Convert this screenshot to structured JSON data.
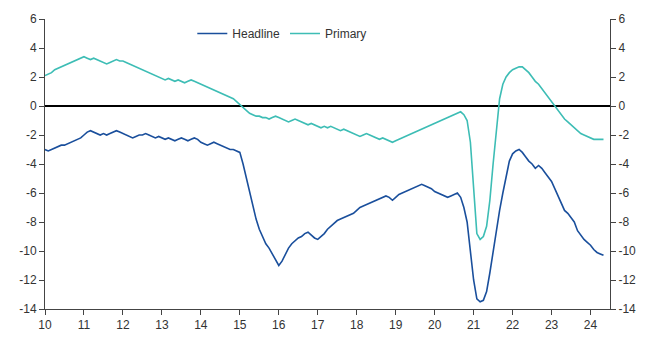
{
  "chart_data": {
    "type": "line",
    "x": [
      10.0,
      10.083,
      10.167,
      10.25,
      10.333,
      10.417,
      10.5,
      10.583,
      10.667,
      10.75,
      10.833,
      10.917,
      11.0,
      11.083,
      11.167,
      11.25,
      11.333,
      11.417,
      11.5,
      11.583,
      11.667,
      11.75,
      11.833,
      11.917,
      12.0,
      12.083,
      12.167,
      12.25,
      12.333,
      12.417,
      12.5,
      12.583,
      12.667,
      12.75,
      12.833,
      12.917,
      13.0,
      13.083,
      13.167,
      13.25,
      13.333,
      13.417,
      13.5,
      13.583,
      13.667,
      13.75,
      13.833,
      13.917,
      14.0,
      14.083,
      14.167,
      14.25,
      14.333,
      14.417,
      14.5,
      14.583,
      14.667,
      14.75,
      14.833,
      14.917,
      15.0,
      15.083,
      15.167,
      15.25,
      15.333,
      15.417,
      15.5,
      15.583,
      15.667,
      15.75,
      15.833,
      15.917,
      16.0,
      16.083,
      16.167,
      16.25,
      16.333,
      16.417,
      16.5,
      16.583,
      16.667,
      16.75,
      16.833,
      16.917,
      17.0,
      17.083,
      17.167,
      17.25,
      17.333,
      17.417,
      17.5,
      17.583,
      17.667,
      17.75,
      17.833,
      17.917,
      18.0,
      18.083,
      18.167,
      18.25,
      18.333,
      18.417,
      18.5,
      18.583,
      18.667,
      18.75,
      18.833,
      18.917,
      19.0,
      19.083,
      19.167,
      19.25,
      19.333,
      19.417,
      19.5,
      19.583,
      19.667,
      19.75,
      19.833,
      19.917,
      20.0,
      20.083,
      20.167,
      20.25,
      20.333,
      20.417,
      20.5,
      20.583,
      20.667,
      20.75,
      20.833,
      20.917,
      21.0,
      21.083,
      21.167,
      21.25,
      21.333,
      21.417,
      21.5,
      21.583,
      21.667,
      21.75,
      21.833,
      21.917,
      22.0,
      22.083,
      22.167,
      22.25,
      22.333,
      22.417,
      22.5,
      22.583,
      22.667,
      22.75,
      22.833,
      22.917,
      23.0,
      23.083,
      23.167,
      23.25,
      23.333,
      23.417,
      23.5,
      23.583,
      23.667,
      23.75,
      23.833,
      23.917,
      24.0,
      24.083,
      24.167,
      24.25,
      24.333
    ],
    "series": [
      {
        "name": "Headline",
        "color": "#1a4f9c",
        "values": [
          -3.0,
          -3.1,
          -3.0,
          -2.9,
          -2.8,
          -2.7,
          -2.7,
          -2.6,
          -2.5,
          -2.4,
          -2.3,
          -2.2,
          -2.0,
          -1.8,
          -1.7,
          -1.8,
          -1.9,
          -2.0,
          -1.9,
          -2.0,
          -1.9,
          -1.8,
          -1.7,
          -1.8,
          -1.9,
          -2.0,
          -2.1,
          -2.2,
          -2.1,
          -2.0,
          -2.0,
          -1.9,
          -2.0,
          -2.1,
          -2.2,
          -2.1,
          -2.2,
          -2.3,
          -2.2,
          -2.3,
          -2.4,
          -2.3,
          -2.2,
          -2.3,
          -2.4,
          -2.3,
          -2.2,
          -2.3,
          -2.5,
          -2.6,
          -2.7,
          -2.6,
          -2.5,
          -2.6,
          -2.7,
          -2.8,
          -2.9,
          -3.0,
          -3.0,
          -3.1,
          -3.2,
          -4.0,
          -5.0,
          -6.0,
          -7.0,
          -7.8,
          -8.5,
          -9.0,
          -9.5,
          -9.8,
          -10.2,
          -10.6,
          -11.0,
          -10.7,
          -10.2,
          -9.8,
          -9.5,
          -9.3,
          -9.1,
          -9.0,
          -8.8,
          -8.7,
          -8.9,
          -9.1,
          -9.2,
          -9.0,
          -8.8,
          -8.5,
          -8.3,
          -8.1,
          -7.9,
          -7.8,
          -7.7,
          -7.6,
          -7.5,
          -7.4,
          -7.2,
          -7.0,
          -6.9,
          -6.8,
          -6.7,
          -6.6,
          -6.5,
          -6.4,
          -6.3,
          -6.2,
          -6.3,
          -6.5,
          -6.3,
          -6.1,
          -6.0,
          -5.9,
          -5.8,
          -5.7,
          -5.6,
          -5.5,
          -5.4,
          -5.5,
          -5.6,
          -5.7,
          -5.9,
          -6.0,
          -6.1,
          -6.2,
          -6.3,
          -6.2,
          -6.1,
          -6.0,
          -6.3,
          -7.0,
          -8.0,
          -10.0,
          -12.0,
          -13.3,
          -13.5,
          -13.4,
          -12.8,
          -11.5,
          -10.0,
          -8.5,
          -7.2,
          -6.0,
          -5.0,
          -3.8,
          -3.3,
          -3.1,
          -3.0,
          -3.2,
          -3.5,
          -3.8,
          -4.0,
          -4.3,
          -4.1,
          -4.3,
          -4.6,
          -4.9,
          -5.2,
          -5.7,
          -6.2,
          -6.7,
          -7.2,
          -7.4,
          -7.7,
          -8.0,
          -8.6,
          -8.9,
          -9.2,
          -9.4,
          -9.6,
          -9.9,
          -10.1,
          -10.2,
          -10.3
        ]
      },
      {
        "name": "Primary",
        "color": "#3dbdb5",
        "values": [
          2.1,
          2.2,
          2.3,
          2.5,
          2.6,
          2.7,
          2.8,
          2.9,
          3.0,
          3.1,
          3.2,
          3.3,
          3.4,
          3.3,
          3.2,
          3.3,
          3.2,
          3.1,
          3.0,
          2.9,
          3.0,
          3.1,
          3.2,
          3.1,
          3.1,
          3.0,
          2.9,
          2.8,
          2.7,
          2.6,
          2.5,
          2.4,
          2.3,
          2.2,
          2.1,
          2.0,
          1.9,
          1.8,
          1.9,
          1.8,
          1.7,
          1.8,
          1.7,
          1.6,
          1.7,
          1.8,
          1.7,
          1.6,
          1.5,
          1.4,
          1.3,
          1.2,
          1.1,
          1.0,
          0.9,
          0.8,
          0.7,
          0.6,
          0.5,
          0.3,
          0.1,
          -0.1,
          -0.3,
          -0.5,
          -0.6,
          -0.7,
          -0.7,
          -0.8,
          -0.8,
          -0.9,
          -0.8,
          -0.7,
          -0.8,
          -0.9,
          -1.0,
          -1.1,
          -1.0,
          -0.9,
          -1.0,
          -1.1,
          -1.2,
          -1.3,
          -1.2,
          -1.3,
          -1.4,
          -1.5,
          -1.4,
          -1.5,
          -1.4,
          -1.5,
          -1.6,
          -1.7,
          -1.6,
          -1.7,
          -1.8,
          -1.9,
          -2.0,
          -2.1,
          -2.0,
          -1.9,
          -2.0,
          -2.1,
          -2.2,
          -2.3,
          -2.2,
          -2.3,
          -2.4,
          -2.5,
          -2.4,
          -2.3,
          -2.2,
          -2.1,
          -2.0,
          -1.9,
          -1.8,
          -1.7,
          -1.6,
          -1.5,
          -1.4,
          -1.3,
          -1.2,
          -1.1,
          -1.0,
          -0.9,
          -0.8,
          -0.7,
          -0.6,
          -0.5,
          -0.4,
          -0.6,
          -1.0,
          -2.5,
          -5.5,
          -8.8,
          -9.2,
          -9.0,
          -8.3,
          -6.5,
          -4.0,
          -1.5,
          0.5,
          1.5,
          2.0,
          2.3,
          2.5,
          2.6,
          2.7,
          2.7,
          2.5,
          2.3,
          2.0,
          1.7,
          1.5,
          1.2,
          0.9,
          0.6,
          0.3,
          0.0,
          -0.3,
          -0.6,
          -0.9,
          -1.1,
          -1.3,
          -1.5,
          -1.7,
          -1.9,
          -2.0,
          -2.1,
          -2.2,
          -2.3,
          -2.3,
          -2.3,
          -2.3
        ]
      }
    ],
    "xlim": [
      10,
      24.5
    ],
    "xticks": [
      10,
      11,
      12,
      13,
      14,
      15,
      16,
      17,
      18,
      19,
      20,
      21,
      22,
      23,
      24
    ],
    "ylim": [
      -14,
      6
    ],
    "yticks": [
      -14,
      -12,
      -10,
      -8,
      -6,
      -4,
      -2,
      0,
      2,
      4,
      6
    ],
    "y2lim": [
      -14,
      6
    ],
    "y2ticks": [
      -14,
      -12,
      -10,
      -8,
      -6,
      -4,
      -2,
      0,
      2,
      4,
      6
    ],
    "grid": false,
    "legend": "top"
  }
}
